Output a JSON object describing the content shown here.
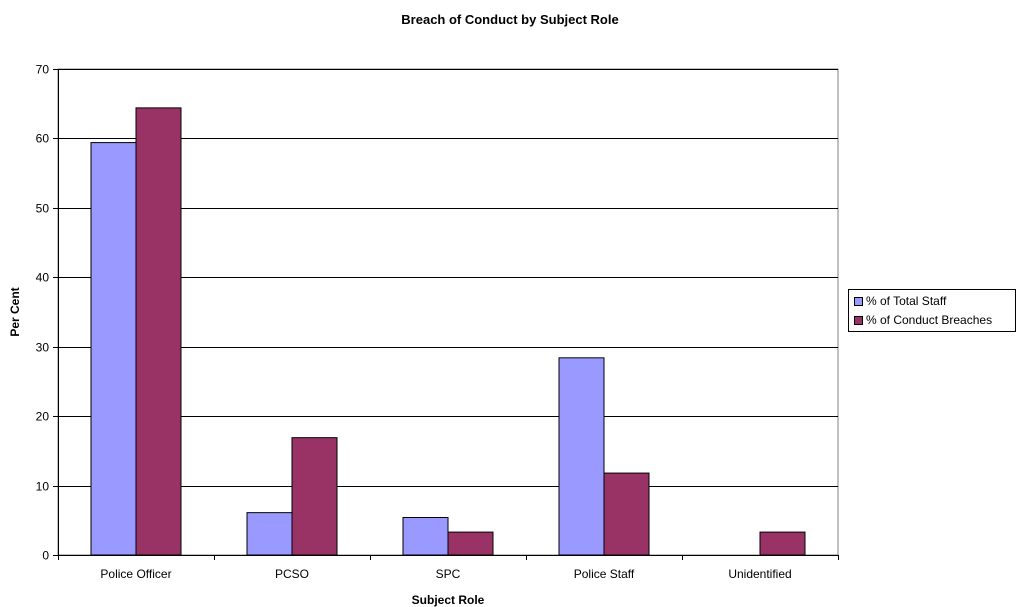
{
  "chart_data": {
    "type": "bar",
    "title": "Breach of Conduct by Subject Role",
    "xlabel": "Subject Role",
    "ylabel": "Per Cent",
    "categories": [
      "Police Officer",
      "PCSO",
      "SPC",
      "Police Staff",
      "Unidentified"
    ],
    "series": [
      {
        "name": "% of Total Staff",
        "color": "#9999ff",
        "values": [
          59.4,
          6.1,
          5.4,
          28.4,
          0
        ]
      },
      {
        "name": "% of Conduct Breaches",
        "color": "#993366",
        "values": [
          64.4,
          16.9,
          3.3,
          11.8,
          3.3
        ]
      }
    ],
    "ylim": [
      0,
      70
    ],
    "yticks": [
      0,
      10,
      20,
      30,
      40,
      50,
      60,
      70
    ],
    "grid": true,
    "legend_position": "right"
  }
}
